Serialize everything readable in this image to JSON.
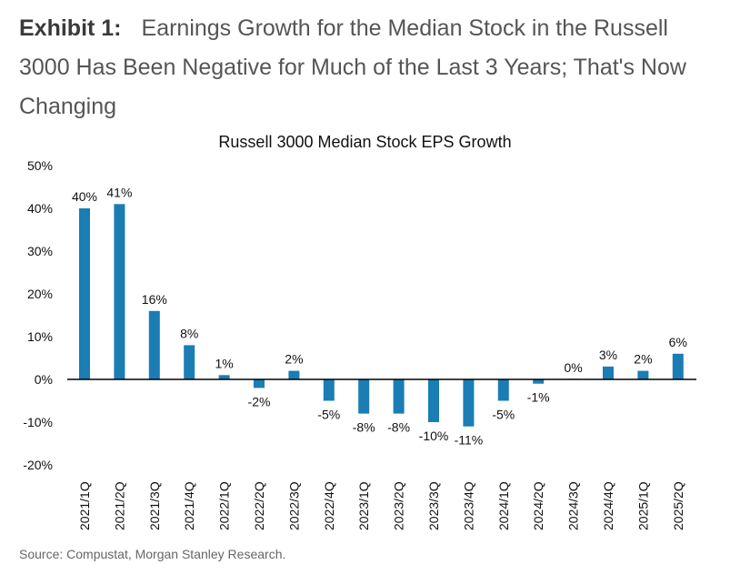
{
  "header": {
    "exhibit_label": "Exhibit 1:",
    "exhibit_title": "Earnings Growth for the Median Stock in the Russell 3000 Has Been Negative for Much of the Last 3 Years; That's Now Changing"
  },
  "footer": {
    "source": "Source: Compustat, Morgan Stanley Research."
  },
  "colors": {
    "bar": "#1a7db4",
    "axis": "#000000",
    "text": "#111111"
  },
  "chart_data": {
    "type": "bar",
    "title": "Russell 3000 Median Stock EPS Growth",
    "xlabel": "",
    "ylabel": "",
    "ylim": [
      -20,
      50
    ],
    "yticks": [
      50,
      40,
      30,
      20,
      10,
      0,
      -10,
      -20
    ],
    "ytick_labels": [
      "50%",
      "40%",
      "30%",
      "20%",
      "10%",
      "0%",
      "-10%",
      "-20%"
    ],
    "grid": false,
    "legend": "none",
    "categories": [
      "2021/1Q",
      "2021/2Q",
      "2021/3Q",
      "2021/4Q",
      "2022/1Q",
      "2022/2Q",
      "2022/3Q",
      "2022/4Q",
      "2023/1Q",
      "2023/2Q",
      "2023/3Q",
      "2023/4Q",
      "2024/1Q",
      "2024/2Q",
      "2024/3Q",
      "2024/4Q",
      "2025/1Q",
      "2025/2Q"
    ],
    "values": [
      40,
      41,
      16,
      8,
      1,
      -2,
      2,
      -5,
      -8,
      -8,
      -10,
      -11,
      -5,
      -1,
      0,
      3,
      2,
      6
    ],
    "data_labels": [
      "40%",
      "41%",
      "16%",
      "8%",
      "1%",
      "-2%",
      "2%",
      "-5%",
      "-8%",
      "-8%",
      "-10%",
      "-11%",
      "-5%",
      "-1%",
      "0%",
      "3%",
      "2%",
      "6%"
    ]
  }
}
